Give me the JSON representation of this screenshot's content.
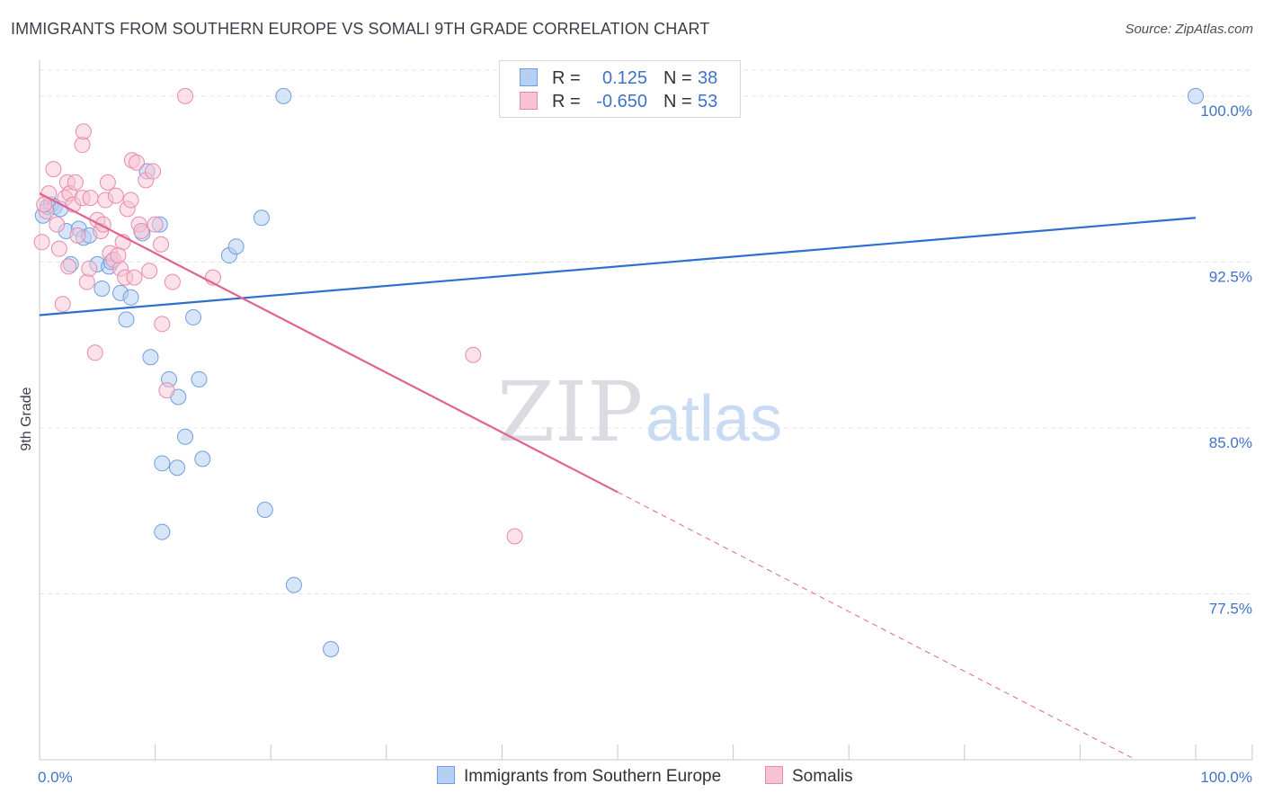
{
  "title": "IMMIGRANTS FROM SOUTHERN EUROPE VS SOMALI 9TH GRADE CORRELATION CHART",
  "source": "Source: ZipAtlas.com",
  "watermark": {
    "part1": "ZIP",
    "part2": "atlas"
  },
  "legend_top": [
    {
      "r_label": "R =",
      "r_value": "0.125",
      "n_label": "N =",
      "n_value": "38"
    },
    {
      "r_label": "R =",
      "r_value": "-0.650",
      "n_label": "N =",
      "n_value": "53"
    }
  ],
  "legend_bottom": [
    {
      "label": "Immigrants from Southern Europe"
    },
    {
      "label": "Somalis"
    }
  ],
  "colors": {
    "blue_fill": "#b7cff3",
    "blue_stroke": "#6f9ee0",
    "blue_line": "#2f6fce",
    "pink_fill": "#f7c3d4",
    "pink_stroke": "#e88aab",
    "pink_line": "#e0648f",
    "grid": "#e3e5ea",
    "tick_text": "#3e73c8"
  },
  "chart_data": {
    "type": "scatter",
    "title": "IMMIGRANTS FROM SOUTHERN EUROPE VS SOMALI 9TH GRADE CORRELATION CHART",
    "xlabel": "",
    "ylabel": "9th Grade",
    "xlim": [
      0,
      100
    ],
    "ylim": [
      70.0,
      101.5
    ],
    "x_tick_labels": [
      "0.0%",
      "100.0%"
    ],
    "y_ticks": [
      77.5,
      85.0,
      92.5,
      100.0
    ],
    "y_tick_labels": [
      "77.5%",
      "85.0%",
      "92.5%",
      "100.0%"
    ],
    "grid": true,
    "series": [
      {
        "name": "Immigrants from Southern Europe",
        "R": 0.125,
        "N": 38,
        "trend": {
          "x0": 0,
          "y0": 90.1,
          "x1": 100,
          "y1": 94.5
        },
        "points": [
          [
            0.3,
            94.6
          ],
          [
            0.7,
            95.0
          ],
          [
            1.0,
            95.1
          ],
          [
            1.3,
            95.0
          ],
          [
            1.8,
            94.9
          ],
          [
            2.3,
            93.9
          ],
          [
            2.7,
            92.4
          ],
          [
            3.4,
            94.0
          ],
          [
            3.8,
            93.6
          ],
          [
            4.3,
            93.7
          ],
          [
            5.0,
            92.4
          ],
          [
            5.4,
            91.3
          ],
          [
            6.0,
            92.3
          ],
          [
            6.2,
            92.5
          ],
          [
            7.0,
            91.1
          ],
          [
            7.5,
            89.9
          ],
          [
            7.9,
            90.9
          ],
          [
            8.9,
            93.8
          ],
          [
            9.3,
            96.6
          ],
          [
            9.6,
            88.2
          ],
          [
            10.4,
            94.2
          ],
          [
            11.2,
            87.2
          ],
          [
            12.0,
            86.4
          ],
          [
            12.6,
            84.6
          ],
          [
            13.3,
            90.0
          ],
          [
            13.8,
            87.2
          ],
          [
            14.1,
            83.6
          ],
          [
            10.6,
            83.4
          ],
          [
            11.9,
            83.2
          ],
          [
            10.6,
            80.3
          ],
          [
            16.4,
            92.8
          ],
          [
            17.0,
            93.2
          ],
          [
            19.2,
            94.5
          ],
          [
            19.5,
            81.3
          ],
          [
            21.1,
            100.0
          ],
          [
            22.0,
            77.9
          ],
          [
            25.2,
            75.0
          ],
          [
            100,
            100.0
          ]
        ]
      },
      {
        "name": "Somalis",
        "R": -0.65,
        "N": 53,
        "trend": {
          "x0": 0,
          "y0": 95.6,
          "x1": 50,
          "y1": 82.1,
          "dash_x1": 100,
          "dash_y1": 68.6
        },
        "points": [
          [
            0.2,
            93.4
          ],
          [
            0.6,
            94.8
          ],
          [
            0.8,
            95.6
          ],
          [
            1.2,
            96.7
          ],
          [
            1.5,
            94.2
          ],
          [
            1.7,
            93.1
          ],
          [
            2.0,
            90.6
          ],
          [
            2.2,
            95.4
          ],
          [
            2.4,
            96.1
          ],
          [
            2.6,
            95.6
          ],
          [
            2.9,
            95.1
          ],
          [
            3.1,
            96.1
          ],
          [
            3.3,
            93.7
          ],
          [
            3.7,
            95.4
          ],
          [
            4.1,
            91.6
          ],
          [
            4.3,
            92.2
          ],
          [
            3.7,
            97.8
          ],
          [
            3.8,
            98.4
          ],
          [
            4.4,
            95.4
          ],
          [
            4.8,
            88.4
          ],
          [
            5.0,
            94.4
          ],
          [
            5.3,
            93.9
          ],
          [
            5.5,
            94.2
          ],
          [
            5.7,
            95.3
          ],
          [
            5.9,
            96.1
          ],
          [
            6.1,
            92.9
          ],
          [
            6.4,
            92.6
          ],
          [
            6.6,
            95.5
          ],
          [
            7.0,
            92.2
          ],
          [
            7.2,
            93.4
          ],
          [
            7.4,
            91.8
          ],
          [
            7.6,
            94.9
          ],
          [
            7.9,
            95.3
          ],
          [
            8.0,
            97.1
          ],
          [
            8.2,
            91.8
          ],
          [
            8.4,
            97.0
          ],
          [
            8.6,
            94.2
          ],
          [
            8.8,
            93.9
          ],
          [
            9.2,
            96.2
          ],
          [
            9.5,
            92.1
          ],
          [
            10.0,
            94.2
          ],
          [
            10.5,
            93.3
          ],
          [
            10.6,
            89.7
          ],
          [
            11.0,
            86.7
          ],
          [
            11.5,
            91.6
          ],
          [
            12.6,
            100.0
          ],
          [
            15.0,
            91.8
          ],
          [
            37.5,
            88.3
          ],
          [
            41.1,
            80.1
          ],
          [
            0.4,
            95.1
          ],
          [
            2.5,
            92.3
          ],
          [
            6.8,
            92.8
          ],
          [
            9.8,
            96.6
          ]
        ]
      }
    ]
  }
}
